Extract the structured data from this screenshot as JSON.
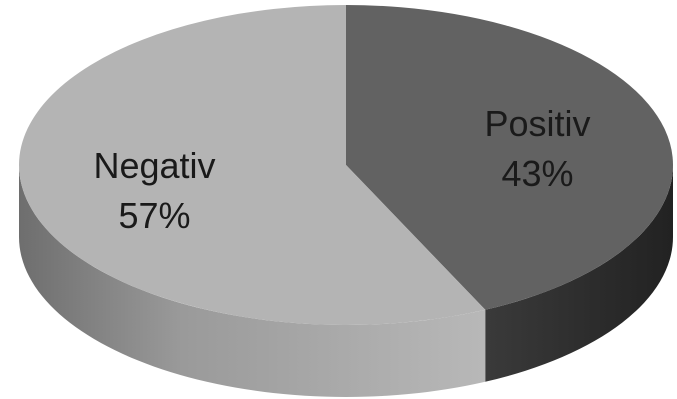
{
  "chart_data": {
    "type": "pie",
    "style": "3d",
    "title": "",
    "slices": [
      {
        "label": "Positiv",
        "value": 43,
        "percent_label": "43%",
        "color": "#626262"
      },
      {
        "label": "Negativ",
        "value": 57,
        "percent_label": "57%",
        "color": "#b4b4b4"
      }
    ],
    "legend": "none",
    "data_labels": "inside"
  }
}
